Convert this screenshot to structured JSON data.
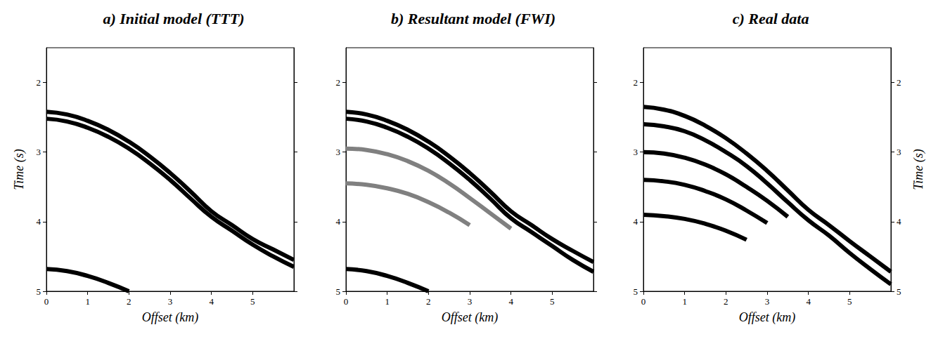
{
  "chart_data": [
    {
      "type": "line",
      "title": "a) Initial model (TTT)",
      "xlabel": "Offset (km)",
      "ylabel": "Time (s)",
      "x": [
        0,
        0.5,
        1,
        1.5,
        2,
        2.5,
        3,
        3.5,
        4,
        4.5,
        5,
        5.5,
        6
      ],
      "series": [
        {
          "color": "#000000",
          "values": [
            2.42,
            2.46,
            2.55,
            2.68,
            2.85,
            3.06,
            3.3,
            3.57,
            3.85,
            4.05,
            4.25,
            4.4,
            4.55
          ]
        },
        {
          "color": "#000000",
          "values": [
            2.52,
            2.56,
            2.65,
            2.78,
            2.95,
            3.16,
            3.4,
            3.67,
            3.93,
            4.13,
            4.33,
            4.5,
            4.65
          ]
        },
        {
          "color": "#000000",
          "values": [
            4.68,
            4.71,
            4.78,
            4.88,
            5.0,
            null,
            null,
            null,
            null,
            null,
            null,
            null,
            null
          ]
        }
      ],
      "xlim": [
        0,
        6
      ],
      "xticks": [
        0,
        1,
        2,
        3,
        4,
        5
      ],
      "ylim": [
        1.5,
        5
      ],
      "yticks": [
        2,
        3,
        4,
        5
      ]
    },
    {
      "type": "line",
      "title": "b) Resultant model (FWI)",
      "xlabel": "Offset (km)",
      "x": [
        0,
        0.5,
        1,
        1.5,
        2,
        2.5,
        3,
        3.5,
        4,
        4.5,
        5,
        5.5,
        6
      ],
      "series": [
        {
          "color": "#000000",
          "values": [
            2.42,
            2.46,
            2.55,
            2.68,
            2.85,
            3.06,
            3.3,
            3.57,
            3.85,
            4.05,
            4.25,
            4.42,
            4.58
          ]
        },
        {
          "color": "#000000",
          "values": [
            2.52,
            2.56,
            2.65,
            2.78,
            2.95,
            3.16,
            3.4,
            3.67,
            3.95,
            4.15,
            4.35,
            4.55,
            4.72
          ]
        },
        {
          "color": "#808080",
          "values": [
            2.95,
            2.97,
            3.03,
            3.13,
            3.27,
            3.45,
            3.66,
            3.88,
            4.1,
            null,
            null,
            null,
            null
          ]
        },
        {
          "color": "#808080",
          "values": [
            3.45,
            3.47,
            3.52,
            3.6,
            3.72,
            3.87,
            4.05,
            null,
            null,
            null,
            null,
            null,
            null
          ]
        },
        {
          "color": "#000000",
          "values": [
            4.68,
            4.71,
            4.78,
            4.88,
            5.0,
            null,
            null,
            null,
            null,
            null,
            null,
            null,
            null
          ]
        }
      ],
      "xlim": [
        0,
        6
      ],
      "xticks": [
        0,
        1,
        2,
        3,
        4,
        5
      ],
      "ylim": [
        1.5,
        5
      ],
      "yticks": [
        2,
        3,
        4,
        5
      ]
    },
    {
      "type": "line",
      "title": "c) Real data",
      "xlabel": "Offset (km)",
      "ylabel": "Time (s)",
      "x": [
        0,
        0.5,
        1,
        1.5,
        2,
        2.5,
        3,
        3.5,
        4,
        4.5,
        5,
        5.5,
        6
      ],
      "series": [
        {
          "color": "#000000",
          "values": [
            2.35,
            2.39,
            2.48,
            2.62,
            2.8,
            3.02,
            3.27,
            3.55,
            3.83,
            4.05,
            4.28,
            4.5,
            4.72
          ]
        },
        {
          "color": "#000000",
          "values": [
            2.6,
            2.63,
            2.7,
            2.83,
            3.0,
            3.2,
            3.45,
            3.72,
            3.98,
            4.2,
            4.45,
            4.68,
            4.9
          ]
        },
        {
          "color": "#000000",
          "values": [
            3.0,
            3.02,
            3.08,
            3.18,
            3.32,
            3.5,
            3.7,
            3.93,
            null,
            null,
            null,
            null,
            null
          ]
        },
        {
          "color": "#000000",
          "values": [
            3.4,
            3.42,
            3.47,
            3.56,
            3.68,
            3.84,
            4.02,
            null,
            null,
            null,
            null,
            null,
            null
          ]
        },
        {
          "color": "#000000",
          "values": [
            3.9,
            3.92,
            3.96,
            4.03,
            4.13,
            4.26,
            null,
            null,
            null,
            null,
            null,
            null,
            null
          ]
        }
      ],
      "xlim": [
        0,
        6
      ],
      "xticks": [
        0,
        1,
        2,
        3,
        4,
        5
      ],
      "ylim": [
        1.5,
        5
      ],
      "yticks": [
        2,
        3,
        4,
        5
      ]
    }
  ]
}
